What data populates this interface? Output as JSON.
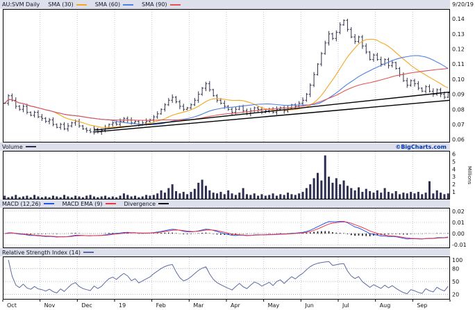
{
  "header": {
    "symbol": "AU:SVM Daily",
    "date": "9/20/19",
    "sma_labels": [
      "SMA (30)",
      "SMA (60)",
      "SMA (90)"
    ]
  },
  "panels": {
    "volume_label": "Volume",
    "copyright": "©BigCharts.com",
    "macd_labels": [
      "MACD (12,26)",
      "MACD EMA (9)",
      "Divergence"
    ],
    "rsi_label": "Relative Strength Index (14)"
  },
  "chart_data": {
    "type": "ohlc_bar",
    "title": "AU:SVM Daily",
    "as_of_date": "9/20/19",
    "x_months": [
      "Oct",
      "Nov",
      "Dec",
      "19",
      "Feb",
      "Mar",
      "Apr",
      "May",
      "Jun",
      "Jul",
      "Aug",
      "Sep"
    ],
    "trading_days": 252,
    "price": {
      "ylim": [
        0.058,
        0.1465
      ],
      "yticks": [
        0.14,
        0.13,
        0.12,
        0.11,
        0.1,
        0.09,
        0.08,
        0.07,
        0.06
      ],
      "candle_color": "#30304a",
      "close": [
        0.084,
        0.089,
        0.086,
        0.082,
        0.08,
        0.082,
        0.078,
        0.076,
        0.078,
        0.075,
        0.074,
        0.072,
        0.073,
        0.07,
        0.068,
        0.07,
        0.067,
        0.069,
        0.071,
        0.072,
        0.069,
        0.067,
        0.066,
        0.065,
        0.067,
        0.065,
        0.066,
        0.068,
        0.07,
        0.071,
        0.07,
        0.072,
        0.074,
        0.073,
        0.071,
        0.072,
        0.07,
        0.071,
        0.072,
        0.073,
        0.075,
        0.077,
        0.08,
        0.083,
        0.086,
        0.088,
        0.085,
        0.082,
        0.08,
        0.081,
        0.083,
        0.086,
        0.09,
        0.094,
        0.097,
        0.093,
        0.089,
        0.086,
        0.084,
        0.082,
        0.08,
        0.078,
        0.08,
        0.082,
        0.079,
        0.077,
        0.079,
        0.081,
        0.08,
        0.078,
        0.079,
        0.08,
        0.078,
        0.08,
        0.081,
        0.079,
        0.081,
        0.083,
        0.082,
        0.084,
        0.086,
        0.09,
        0.096,
        0.103,
        0.11,
        0.117,
        0.124,
        0.13,
        0.127,
        0.131,
        0.136,
        0.139,
        0.133,
        0.128,
        0.125,
        0.128,
        0.122,
        0.118,
        0.113,
        0.116,
        0.113,
        0.11,
        0.113,
        0.109,
        0.111,
        0.107,
        0.103,
        0.099,
        0.096,
        0.099,
        0.097,
        0.094,
        0.092,
        0.095,
        0.092,
        0.09,
        0.093,
        0.09,
        0.088,
        0.091
      ],
      "sma": [
        {
          "period": 30,
          "color": "#f5a623"
        },
        {
          "period": 60,
          "color": "#4f7fe0"
        },
        {
          "period": 90,
          "color": "#e05555"
        }
      ],
      "trendlines": [
        {
          "x1": 0.205,
          "y1": 0.065,
          "x2": 1,
          "y2": 0.086,
          "color": "#000000"
        },
        {
          "x1": 0.205,
          "y1": 0.0662,
          "x2": 1,
          "y2": 0.0915,
          "color": "#000000"
        }
      ]
    },
    "volume": {
      "ylim": [
        0,
        6.4
      ],
      "yticks": [
        6,
        5,
        4,
        3,
        2,
        1
      ],
      "unit_label": "Millions",
      "color": "#2e2e50",
      "values": [
        0.5,
        0.3,
        0.4,
        0.6,
        0.3,
        0.4,
        0.5,
        0.3,
        0.6,
        0.4,
        0.3,
        0.4,
        0.3,
        0.5,
        0.4,
        0.3,
        0.6,
        0.4,
        0.3,
        0.5,
        0.4,
        0.3,
        0.5,
        0.6,
        0.4,
        0.3,
        0.4,
        0.5,
        0.3,
        0.4,
        0.3,
        0.5,
        0.8,
        0.6,
        0.4,
        0.5,
        0.3,
        0.4,
        0.6,
        0.5,
        0.6,
        0.8,
        1.2,
        0.9,
        1.5,
        2.0,
        1.1,
        0.8,
        1.0,
        0.7,
        1.0,
        1.4,
        2.2,
        2.6,
        1.8,
        1.2,
        0.9,
        0.8,
        1.0,
        0.7,
        1.2,
        0.8,
        0.6,
        0.9,
        1.5,
        0.7,
        0.6,
        0.8,
        0.5,
        0.7,
        0.5,
        0.6,
        0.8,
        0.5,
        0.7,
        0.6,
        0.9,
        0.7,
        0.6,
        0.8,
        1.0,
        1.5,
        2.0,
        2.8,
        3.5,
        2.5,
        5.8,
        3.0,
        2.2,
        2.8,
        2.0,
        2.5,
        1.8,
        1.5,
        1.2,
        1.6,
        1.0,
        1.4,
        1.1,
        0.9,
        1.2,
        0.9,
        1.5,
        1.0,
        0.8,
        1.1,
        0.7,
        0.9,
        0.8,
        1.0,
        0.8,
        1.0,
        0.7,
        0.9,
        2.4,
        0.8,
        1.2,
        0.9,
        0.7,
        0.8
      ]
    },
    "macd": {
      "fast": 12,
      "slow": 26,
      "signal": 9,
      "ylim": [
        -0.013,
        0.023
      ],
      "yticks": [
        0.02,
        0.01,
        0,
        -0.01
      ],
      "colors": {
        "macd": "#2255ee",
        "signal": "#ee3344",
        "divergence": "#111111"
      }
    },
    "rsi": {
      "period": 14,
      "ylim": [
        8,
        108
      ],
      "yticks": [
        100,
        80,
        50,
        20
      ],
      "gridlines": [
        80,
        50,
        20
      ],
      "color": "#5a6aa0"
    }
  }
}
